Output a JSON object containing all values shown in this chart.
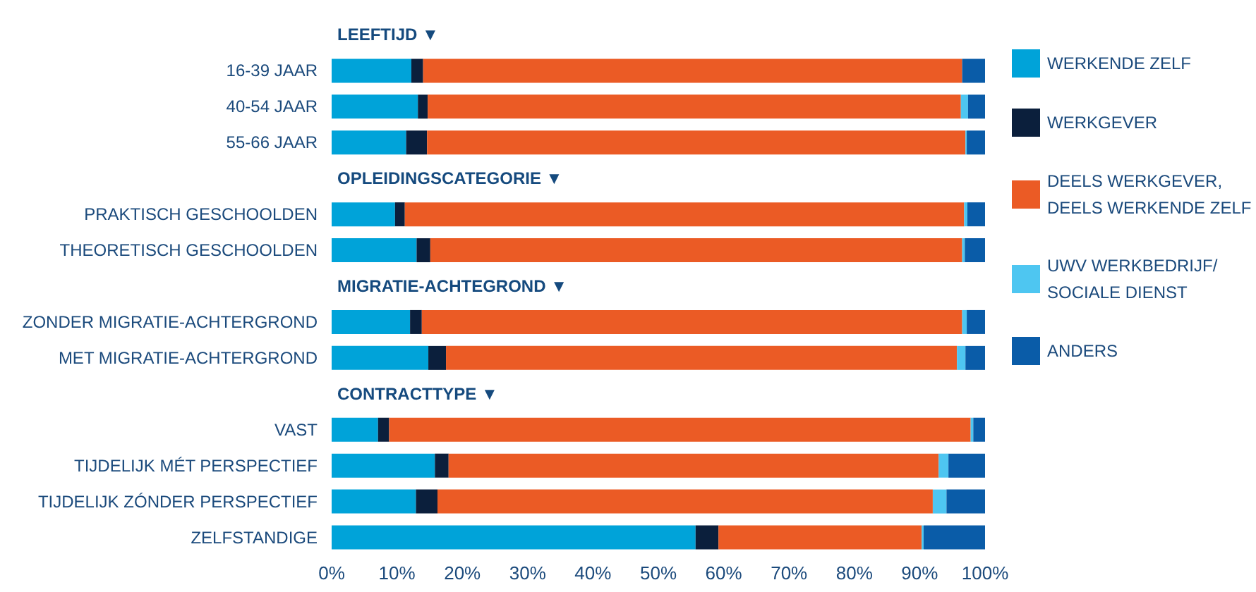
{
  "chart_data": {
    "type": "bar",
    "orientation": "horizontal",
    "stacked": true,
    "categories": [
      "LEEFTIJD ▼",
      "16-39 JAAR",
      "40-54 JAAR",
      "55-66 JAAR",
      "OPLEIDINGSCATEGORIE ▼",
      "PRAKTISCH GESCHOOLDEN",
      "THEORETISCH GESCHOOLDEN",
      "MIGRATIE-ACHTEGROND ▼",
      "ZONDER MIGRATIE-ACHTERGROND",
      "MET MIGRATIE-ACHTERGROND",
      "CONTRACTTYPE ▼",
      "VAST",
      "TIJDELIJK MÉT PERSPECTIEF",
      "TIJDELIJK ZÓNDER PERSPECTIEF",
      "ZELFSTANDIGE"
    ],
    "series": [
      {
        "name": "WERKENDE ZELF",
        "color": "#00a3d9",
        "values": [
          null,
          12.2,
          13.2,
          11.4,
          null,
          9.7,
          13.0,
          null,
          12.0,
          14.8,
          null,
          7.1,
          15.8,
          12.9,
          55.7
        ]
      },
      {
        "name": "WERKGEVER",
        "color": "#0b1f3c",
        "values": [
          null,
          1.8,
          1.5,
          3.2,
          null,
          1.5,
          2.1,
          null,
          1.8,
          2.7,
          null,
          1.7,
          2.1,
          3.3,
          3.5
        ]
      },
      {
        "name": "DEELS WERKGEVER, DEELS WERKENDE ZELF",
        "color": "#eb5b25",
        "values": [
          null,
          82.5,
          81.6,
          82.4,
          null,
          85.6,
          81.4,
          null,
          82.7,
          78.2,
          null,
          89.0,
          75.0,
          75.8,
          31.1
        ]
      },
      {
        "name": "UWV WERKBEDRIJF/ SOCIALE DIENST",
        "color": "#4ec6f1",
        "values": [
          null,
          0,
          1.1,
          0.2,
          null,
          0.5,
          0.4,
          null,
          0.7,
          1.3,
          null,
          0.4,
          1.5,
          2.1,
          0.3
        ]
      },
      {
        "name": "ANDERS",
        "color": "#0a5ca8",
        "values": [
          null,
          3.5,
          2.6,
          2.8,
          null,
          2.7,
          3.1,
          null,
          2.8,
          3.0,
          null,
          1.8,
          5.6,
          5.9,
          9.4
        ]
      }
    ],
    "xlim": [
      0,
      100
    ],
    "xticks": [
      {
        "value": 0,
        "label": "0%"
      },
      {
        "value": 10,
        "label": "10%"
      },
      {
        "value": 20,
        "label": "20%"
      },
      {
        "value": 30,
        "label": "30%"
      },
      {
        "value": 40,
        "label": "40%"
      },
      {
        "value": 50,
        "label": "50%"
      },
      {
        "value": 60,
        "label": "60%"
      },
      {
        "value": 70,
        "label": "70%"
      },
      {
        "value": 80,
        "label": "80%"
      },
      {
        "value": 90,
        "label": "90%"
      },
      {
        "value": 100,
        "label": "100%"
      }
    ],
    "grid": false,
    "legend": "right"
  }
}
